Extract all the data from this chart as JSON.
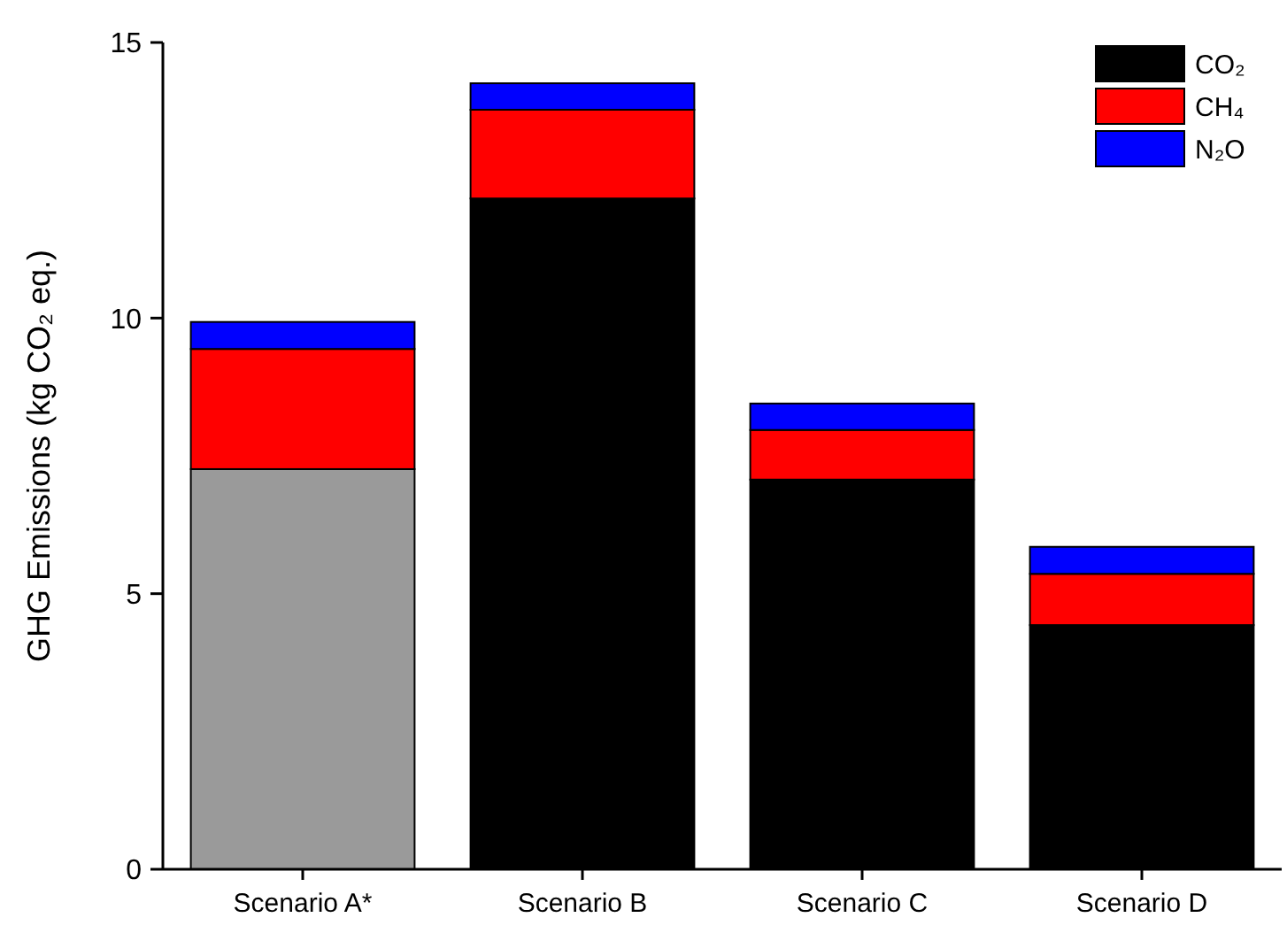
{
  "chart_data": {
    "type": "bar",
    "stacked": true,
    "ylabel": "GHG Emissions (kg CO₂ eq.)",
    "categories": [
      "Scenario A*",
      "Scenario B",
      "Scenario C",
      "Scenario D"
    ],
    "series": [
      {
        "name": "CO₂",
        "color": "#000000",
        "colors": [
          "#9a9a9a",
          "#000000",
          "#000000",
          "#000000"
        ],
        "values": [
          7.26,
          12.17,
          7.07,
          4.43
        ]
      },
      {
        "name": "CH₄",
        "color": "#ff0000",
        "values": [
          2.18,
          1.61,
          0.9,
          0.93
        ]
      },
      {
        "name": "N₂O",
        "color": "#0000ff",
        "values": [
          0.49,
          0.48,
          0.48,
          0.49
        ]
      }
    ],
    "ylim": [
      0,
      15
    ],
    "yticks": [
      0,
      5,
      10,
      15
    ],
    "legend": "top right"
  }
}
